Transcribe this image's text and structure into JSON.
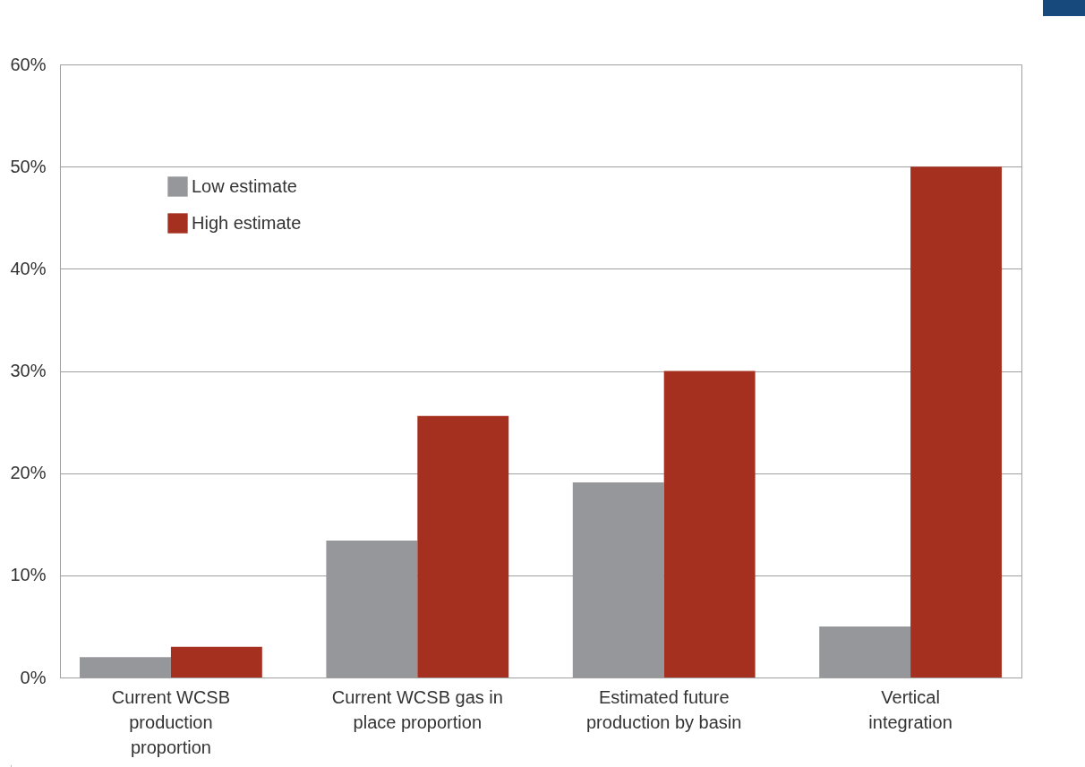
{
  "chart_data": {
    "type": "bar",
    "categories": [
      "Current WCSB production proportion",
      "Current WCSB gas in place proportion",
      "Estimated future production by basin",
      "Vertical integration"
    ],
    "series": [
      {
        "name": "Low estimate",
        "color": "#96979b",
        "values": [
          2,
          13.4,
          19.1,
          5
        ]
      },
      {
        "name": "High estimate",
        "color": "#a63020",
        "values": [
          3,
          25.6,
          30,
          50
        ]
      }
    ],
    "ylim": [
      0,
      60
    ],
    "yticks": [
      {
        "value": 0,
        "label": "0%"
      },
      {
        "value": 10,
        "label": "10%"
      },
      {
        "value": 20,
        "label": "20%"
      },
      {
        "value": 30,
        "label": "30%"
      },
      {
        "value": 40,
        "label": "40%"
      },
      {
        "value": 50,
        "label": "50%"
      },
      {
        "value": 60,
        "label": "60%"
      }
    ],
    "grid": "y",
    "legend": "top left"
  }
}
